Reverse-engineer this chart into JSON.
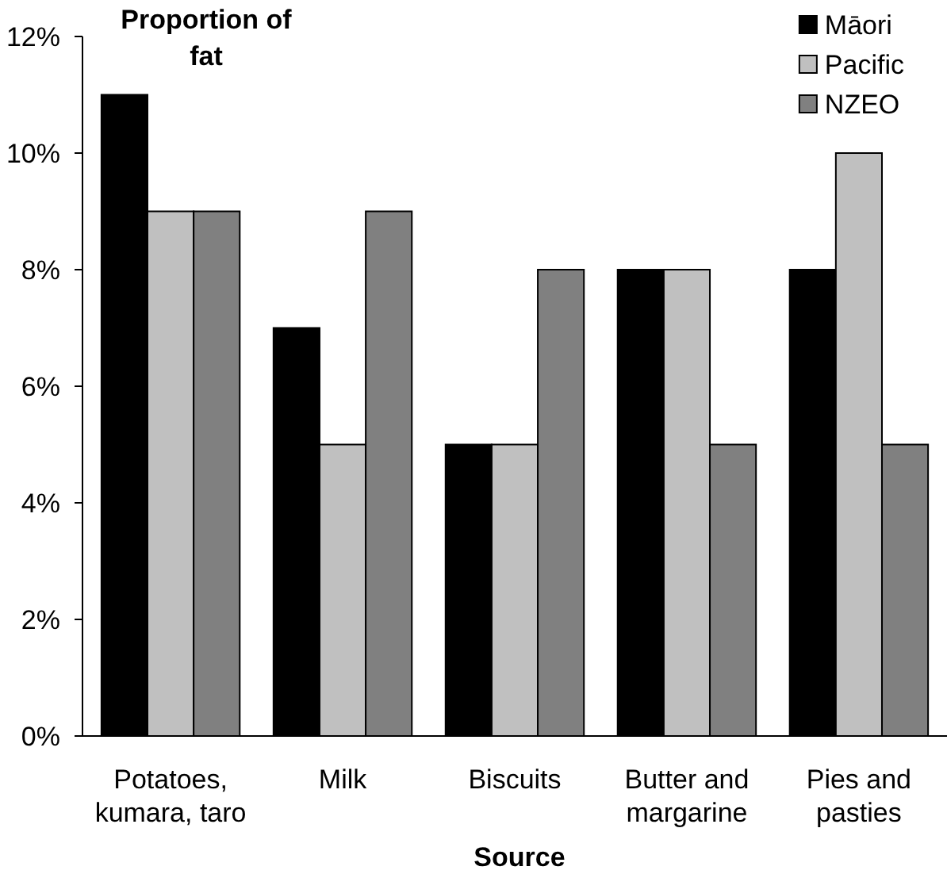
{
  "chart_data": {
    "type": "bar",
    "ylabel": "Proportion of fat",
    "xlabel": "Source",
    "categories": [
      "Potatoes, kumara, taro",
      "Milk",
      "Biscuits",
      "Butter and margarine",
      "Pies and pasties"
    ],
    "series": [
      {
        "name": "Māori",
        "color": "#000000",
        "values": [
          11,
          7,
          5,
          8,
          8
        ]
      },
      {
        "name": "Pacific",
        "color": "#c0c0c0",
        "values": [
          9,
          5,
          5,
          8,
          10
        ]
      },
      {
        "name": "NZEO",
        "color": "#808080",
        "values": [
          9,
          9,
          8,
          5,
          5
        ]
      }
    ],
    "ylim": [
      0,
      12
    ],
    "yticks": [
      {
        "value": 0,
        "label": "0%"
      },
      {
        "value": 2,
        "label": "2%"
      },
      {
        "value": 4,
        "label": "4%"
      },
      {
        "value": 6,
        "label": "6%"
      },
      {
        "value": 8,
        "label": "8%"
      },
      {
        "value": 10,
        "label": "10%"
      },
      {
        "value": 12,
        "label": "12%"
      }
    ],
    "legend": "top right"
  }
}
